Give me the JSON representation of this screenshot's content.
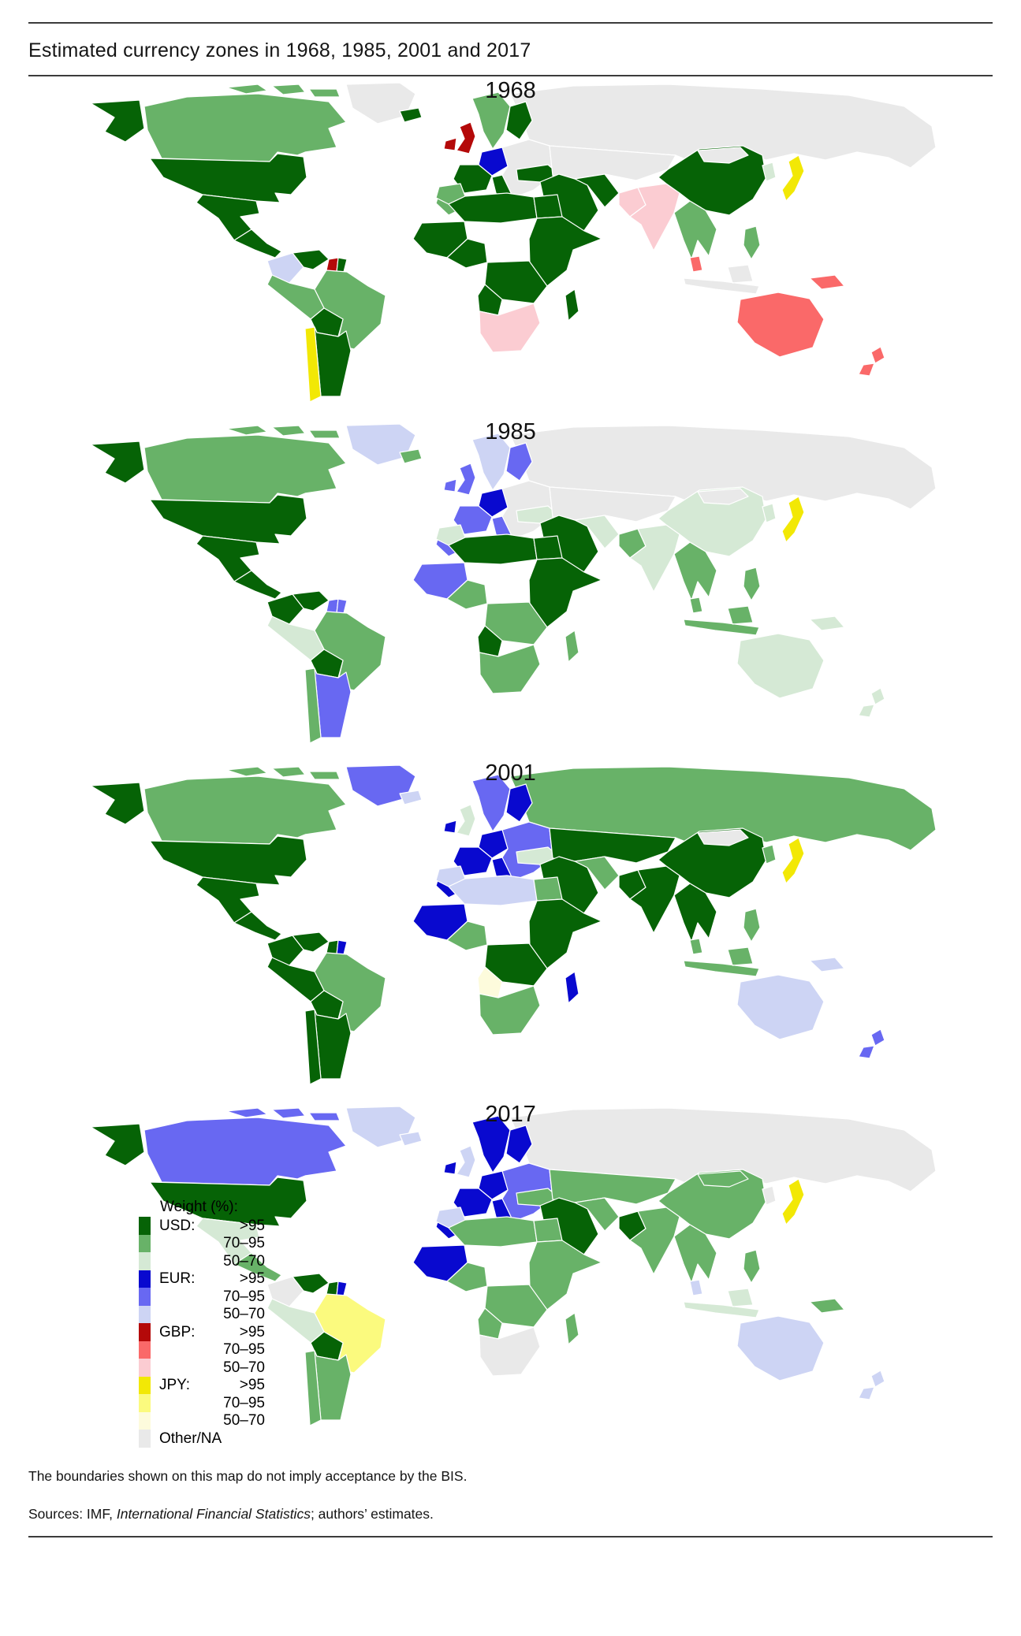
{
  "page": {
    "title": "Estimated currency zones in 1968, 1985, 2001 and 2017",
    "footnote_boundaries": "The boundaries shown on this map do not imply acceptance by the BIS.",
    "sources_prefix": "Sources: IMF, ",
    "sources_italic": "International Financial Statistics",
    "sources_suffix": "; authors’ estimates."
  },
  "palette": {
    "usd_gt95": "#066306",
    "usd_70_95": "#68b268",
    "usd_50_70": "#d5e9d5",
    "eur_gt95": "#0909cf",
    "eur_70_95": "#6868f2",
    "eur_50_70": "#cdd4f4",
    "gbp_gt95": "#b40909",
    "gbp_70_95": "#fa6969",
    "gbp_50_70": "#fbccd2",
    "jpy_gt95": "#f2e805",
    "jpy_70_95": "#fbfa7e",
    "jpy_50_70": "#fdfbdc",
    "other": "#e9e9e9"
  },
  "legend": {
    "title": "Weight (%):",
    "other_label": "Other/NA",
    "other_key": "other",
    "groups": [
      {
        "currency": "USD:",
        "rows": [
          {
            "range": ">95",
            "key": "usd_gt95"
          },
          {
            "range": "70–95",
            "key": "usd_70_95"
          },
          {
            "range": "50–70",
            "key": "usd_50_70"
          }
        ]
      },
      {
        "currency": "EUR:",
        "rows": [
          {
            "range": ">95",
            "key": "eur_gt95"
          },
          {
            "range": "70–95",
            "key": "eur_70_95"
          },
          {
            "range": "50–70",
            "key": "eur_50_70"
          }
        ]
      },
      {
        "currency": "GBP:",
        "rows": [
          {
            "range": ">95",
            "key": "gbp_gt95"
          },
          {
            "range": "70–95",
            "key": "gbp_70_95"
          },
          {
            "range": "50–70",
            "key": "gbp_50_70"
          }
        ]
      },
      {
        "currency": "JPY:",
        "rows": [
          {
            "range": ">95",
            "key": "jpy_gt95"
          },
          {
            "range": "70–95",
            "key": "jpy_70_95"
          },
          {
            "range": "50–70",
            "key": "jpy_50_70"
          }
        ]
      }
    ]
  },
  "maps": [
    {
      "year": "1968",
      "regions": {
        "russia": "other",
        "canada": "usd_70_95",
        "alaska": "usd_gt95",
        "usa": "usd_gt95",
        "greenland": "other",
        "mexico": "usd_gt95",
        "central-america": "usd_gt95",
        "colombia": "eur_50_70",
        "venezuela": "usd_gt95",
        "guyana": "gbp_gt95",
        "french-guiana": "usd_gt95",
        "brazil": "usd_70_95",
        "peru-ecuador": "usd_70_95",
        "bolivia": "usd_gt95",
        "argentina": "usd_gt95",
        "chile": "jpy_gt95",
        "iceland": "usd_gt95",
        "ireland": "gbp_gt95",
        "uk": "gbp_gt95",
        "scandinavia": "usd_70_95",
        "finland": "usd_gt95",
        "germany": "eur_gt95",
        "france": "usd_gt95",
        "iberia": "usd_70_95",
        "italy": "usd_gt95",
        "eastern-europe": "other",
        "turkey": "usd_gt95",
        "middle-east": "usd_gt95",
        "iran": "usd_gt95",
        "central-asia": "other",
        "pakistan": "gbp_50_70",
        "india": "gbp_50_70",
        "china": "usd_gt95",
        "mongolia": "other",
        "korea": "usd_50_70",
        "japan": "jpy_gt95",
        "se-asia": "usd_70_95",
        "malaysia": "gbp_70_95",
        "indonesia": "other",
        "philippines": "usd_70_95",
        "png": "gbp_70_95",
        "australia": "gbp_70_95",
        "new-zealand": "gbp_70_95",
        "morocco": "usd_70_95",
        "north-africa": "usd_gt95",
        "egypt": "usd_gt95",
        "west-africa": "usd_gt95",
        "nigeria": "usd_gt95",
        "east-africa": "usd_gt95",
        "central-africa": "usd_gt95",
        "angola": "usd_gt95",
        "southern-africa": "gbp_50_70",
        "madagascar": "usd_gt95"
      }
    },
    {
      "year": "1985",
      "regions": {
        "russia": "other",
        "canada": "usd_70_95",
        "alaska": "usd_gt95",
        "usa": "usd_gt95",
        "greenland": "eur_50_70",
        "mexico": "usd_gt95",
        "central-america": "usd_gt95",
        "colombia": "usd_gt95",
        "venezuela": "usd_gt95",
        "guyana": "eur_70_95",
        "french-guiana": "eur_70_95",
        "brazil": "usd_70_95",
        "peru-ecuador": "usd_50_70",
        "bolivia": "usd_gt95",
        "argentina": "eur_70_95",
        "chile": "usd_70_95",
        "iceland": "usd_70_95",
        "ireland": "eur_70_95",
        "uk": "eur_70_95",
        "scandinavia": "eur_50_70",
        "finland": "eur_70_95",
        "germany": "eur_gt95",
        "france": "eur_70_95",
        "iberia": "eur_70_95",
        "italy": "eur_70_95",
        "eastern-europe": "other",
        "turkey": "usd_50_70",
        "middle-east": "usd_gt95",
        "iran": "usd_50_70",
        "central-asia": "other",
        "pakistan": "usd_70_95",
        "india": "usd_50_70",
        "china": "usd_50_70",
        "mongolia": "other",
        "korea": "usd_50_70",
        "japan": "jpy_gt95",
        "se-asia": "usd_70_95",
        "malaysia": "usd_70_95",
        "indonesia": "usd_70_95",
        "philippines": "usd_70_95",
        "png": "usd_50_70",
        "australia": "usd_50_70",
        "new-zealand": "usd_50_70",
        "morocco": "usd_50_70",
        "north-africa": "usd_gt95",
        "egypt": "usd_gt95",
        "west-africa": "eur_70_95",
        "nigeria": "usd_70_95",
        "east-africa": "usd_gt95",
        "central-africa": "usd_70_95",
        "angola": "usd_gt95",
        "southern-africa": "usd_70_95",
        "madagascar": "usd_70_95"
      }
    },
    {
      "year": "2001",
      "regions": {
        "russia": "usd_70_95",
        "canada": "usd_70_95",
        "alaska": "usd_gt95",
        "usa": "usd_gt95",
        "greenland": "eur_70_95",
        "mexico": "usd_gt95",
        "central-america": "usd_gt95",
        "colombia": "usd_gt95",
        "venezuela": "usd_gt95",
        "guyana": "usd_gt95",
        "french-guiana": "eur_gt95",
        "brazil": "usd_70_95",
        "peru-ecuador": "usd_gt95",
        "bolivia": "usd_gt95",
        "argentina": "usd_gt95",
        "chile": "usd_gt95",
        "iceland": "eur_50_70",
        "ireland": "eur_gt95",
        "uk": "usd_50_70",
        "scandinavia": "eur_70_95",
        "finland": "eur_gt95",
        "germany": "eur_gt95",
        "france": "eur_gt95",
        "iberia": "eur_gt95",
        "italy": "eur_gt95",
        "eastern-europe": "eur_70_95",
        "turkey": "usd_50_70",
        "middle-east": "usd_gt95",
        "iran": "usd_70_95",
        "central-asia": "usd_gt95",
        "pakistan": "usd_gt95",
        "india": "usd_gt95",
        "china": "usd_gt95",
        "mongolia": "other",
        "korea": "usd_70_95",
        "japan": "jpy_gt95",
        "se-asia": "usd_gt95",
        "malaysia": "usd_70_95",
        "indonesia": "usd_70_95",
        "philippines": "usd_70_95",
        "png": "eur_50_70",
        "australia": "eur_50_70",
        "new-zealand": "eur_70_95",
        "morocco": "eur_50_70",
        "north-africa": "eur_50_70",
        "egypt": "usd_70_95",
        "west-africa": "eur_gt95",
        "nigeria": "usd_70_95",
        "east-africa": "usd_gt95",
        "central-africa": "usd_gt95",
        "angola": "jpy_50_70",
        "southern-africa": "usd_70_95",
        "madagascar": "eur_gt95"
      }
    },
    {
      "year": "2017",
      "regions": {
        "russia": "other",
        "canada": "eur_70_95",
        "alaska": "usd_gt95",
        "usa": "usd_gt95",
        "greenland": "eur_50_70",
        "mexico": "usd_50_70",
        "central-america": "usd_70_95",
        "colombia": "other",
        "venezuela": "usd_gt95",
        "guyana": "usd_gt95",
        "french-guiana": "eur_gt95",
        "brazil": "jpy_70_95",
        "peru-ecuador": "usd_50_70",
        "bolivia": "usd_gt95",
        "argentina": "usd_70_95",
        "chile": "usd_70_95",
        "iceland": "eur_50_70",
        "ireland": "eur_gt95",
        "uk": "eur_50_70",
        "scandinavia": "eur_gt95",
        "finland": "eur_gt95",
        "germany": "eur_gt95",
        "france": "eur_gt95",
        "iberia": "eur_gt95",
        "italy": "eur_gt95",
        "eastern-europe": "eur_70_95",
        "turkey": "usd_70_95",
        "middle-east": "usd_gt95",
        "iran": "usd_70_95",
        "central-asia": "usd_70_95",
        "pakistan": "usd_gt95",
        "india": "usd_70_95",
        "china": "usd_70_95",
        "mongolia": "usd_70_95",
        "korea": "other",
        "japan": "jpy_gt95",
        "se-asia": "usd_70_95",
        "malaysia": "eur_50_70",
        "indonesia": "usd_50_70",
        "philippines": "usd_70_95",
        "png": "usd_70_95",
        "australia": "eur_50_70",
        "new-zealand": "eur_50_70",
        "morocco": "eur_50_70",
        "north-africa": "usd_70_95",
        "egypt": "usd_70_95",
        "west-africa": "eur_gt95",
        "nigeria": "usd_70_95",
        "east-africa": "usd_70_95",
        "central-africa": "usd_70_95",
        "angola": "usd_70_95",
        "southern-africa": "other",
        "madagascar": "usd_70_95"
      }
    }
  ]
}
